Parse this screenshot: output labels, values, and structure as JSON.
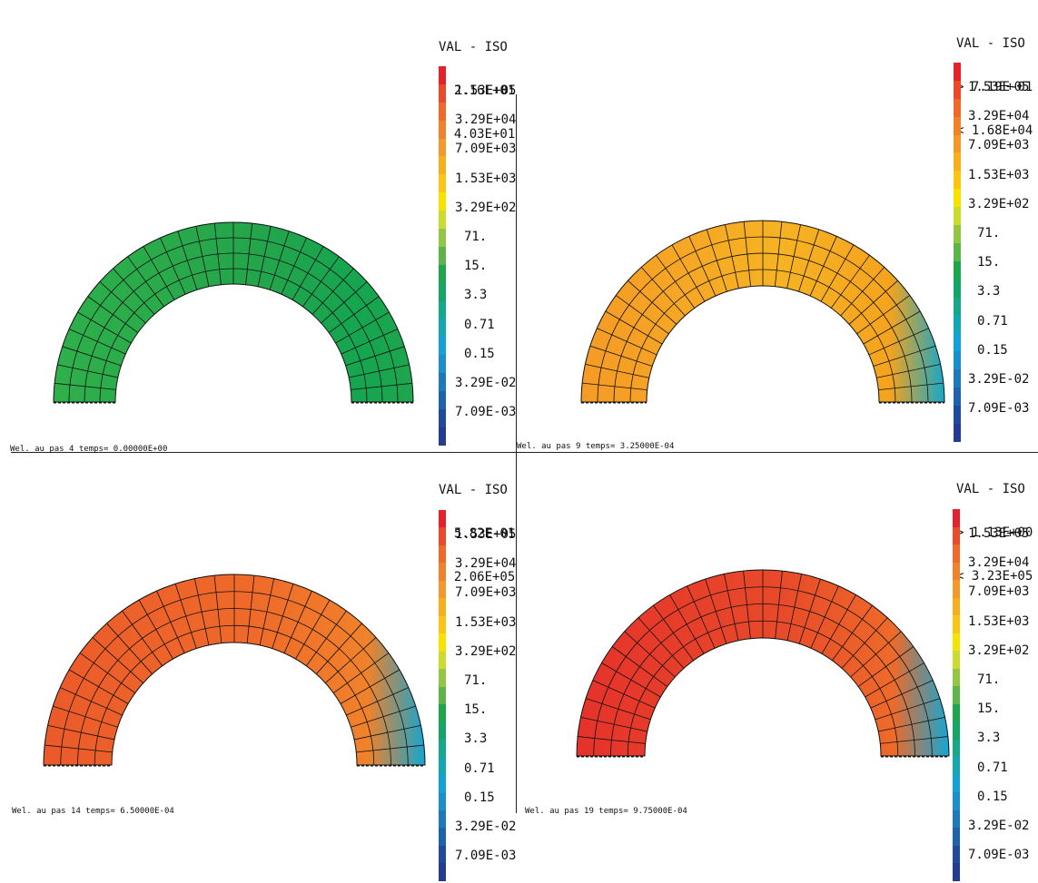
{
  "legend_ticks": [
    "1.53E+05",
    "3.29E+04",
    "7.09E+03",
    "1.53E+03",
    "3.29E+02",
    "71.",
    "15.",
    "3.3",
    "0.71",
    "0.15",
    "3.29E-02",
    "7.09E-03"
  ],
  "colorbar": [
    "#e5222b",
    "#eb4a2a",
    "#ef6a2a",
    "#f0822b",
    "#f5982a",
    "#f7af1c",
    "#fac612",
    "#f5e400",
    "#cbdc2e",
    "#93c643",
    "#5db448",
    "#1fa54e",
    "#15a566",
    "#15a88d",
    "#13a7b3",
    "#12a2d8",
    "#1a8fcc",
    "#1b79bc",
    "#1f62ae",
    "#1f4a9d",
    "#233b91"
  ],
  "panels": [
    {
      "id": "p1",
      "caption": "Wel. au pas 4   temps= 0.00000E+00",
      "head": [
        "VAL - ISO",
        "> 2.16E+01",
        "< 4.03E+01"
      ],
      "ring_outer": "#15a550",
      "ring_inner": "#2fb04b",
      "ring_mid": "#25a54b",
      "end_color": "#1fa54e"
    },
    {
      "id": "p2",
      "caption": "Wel. au pas 9   temps= 3.25000E-04",
      "head": [
        "VAL - ISO",
        "> 7.19E-01",
        "< 1.68E+04"
      ],
      "ring_outer": "#f5a31e",
      "ring_inner": "#f59a26",
      "ring_mid": "#f6b322",
      "end_color": "#15a8c8"
    },
    {
      "id": "p3",
      "caption": "Wel. au pas 14   temps= 6.50000E-04",
      "head": [
        "VAL - ISO",
        "> 5.82E-01",
        "< 2.06E+05"
      ],
      "ring_outer": "#f0822b",
      "ring_inner": "#eb5a2a",
      "ring_mid": "#ef6a2a",
      "end_color": "#14a5d0"
    },
    {
      "id": "p4",
      "caption": "Wel. au pas 19   temps= 9.75000E-04",
      "head": [
        "VAL - ISO",
        "> 1.13E+00",
        "< 3.23E+05"
      ],
      "ring_outer": "#ee6a2a",
      "ring_inner": "#e5322b",
      "ring_mid": "#e84a2a",
      "end_color": "#13a6d5"
    }
  ]
}
